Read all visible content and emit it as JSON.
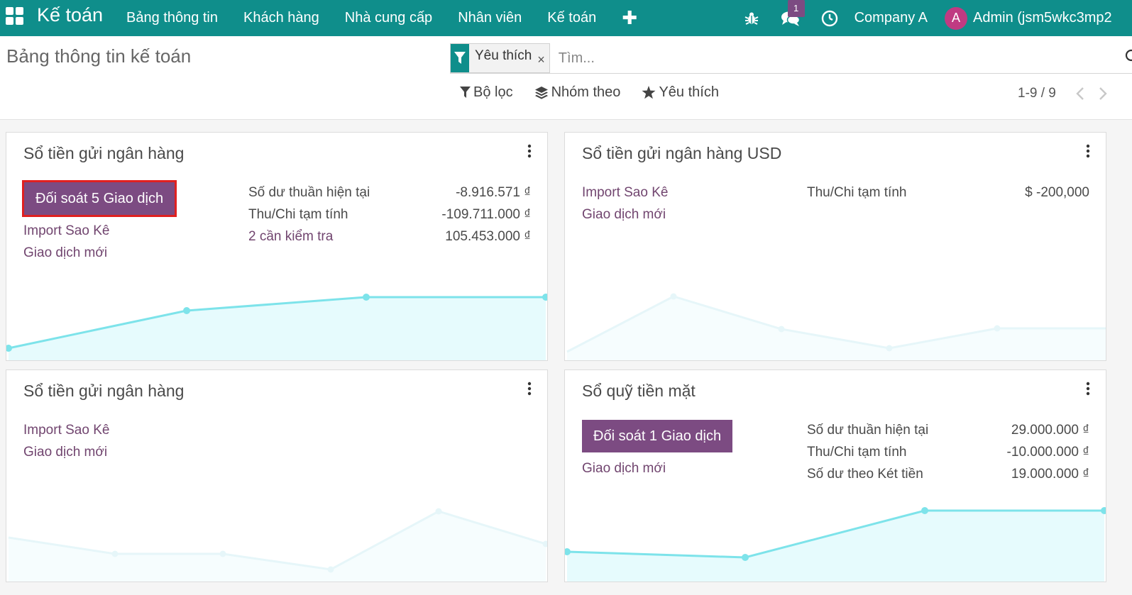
{
  "navbar": {
    "brand": "Kế toán",
    "menu": [
      "Bảng thông tin",
      "Khách hàng",
      "Nhà cung cấp",
      "Nhân viên",
      "Kế toán"
    ],
    "plus": "✚",
    "messages_badge": "1",
    "company": "Company A",
    "avatar_letter": "A",
    "user": "Admin (jsm5wkc3mp2"
  },
  "control": {
    "title": "Bảng thông tin kế toán",
    "facet_label": "Yêu thích",
    "facet_close": "×",
    "search_placeholder": "Tìm...",
    "filter_label": "Bộ lọc",
    "group_label": "Nhóm theo",
    "favorite_label": "Yêu thích",
    "pager": "1-9 / 9"
  },
  "cards": [
    {
      "title": "Sổ tiền gửi ngân hàng",
      "reconcile": "Đối soát 5 Giao dịch",
      "links": [
        "Import Sao Kê",
        "Giao dịch mới"
      ],
      "stats": [
        {
          "label": "Số dư thuần hiện tại",
          "value": "-8.916.571 ₫"
        },
        {
          "label": "Thu/Chi tạm tính",
          "value": "-109.711.000 ₫"
        },
        {
          "label": "2 cần kiểm tra",
          "value": "105.453.000 ₫"
        }
      ]
    },
    {
      "title": "Sổ tiền gửi ngân hàng USD",
      "links": [
        "Import Sao Kê",
        "Giao dịch mới"
      ],
      "stats": [
        {
          "label": "Thu/Chi tạm tính",
          "value": "$ -200,000"
        }
      ]
    },
    {
      "title": "Sổ tiền gửi ngân hàng",
      "links": [
        "Import Sao Kê",
        "Giao dịch mới"
      ]
    },
    {
      "title": "Sổ quỹ tiền mặt",
      "reconcile": "Đối soát 1 Giao dịch",
      "links": [
        "Giao dịch mới"
      ],
      "stats": [
        {
          "label": "Số dư thuần hiện tại",
          "value": "29.000.000 ₫"
        },
        {
          "label": "Thu/Chi tạm tính",
          "value": "-10.000.000 ₫"
        },
        {
          "label": "Số dư theo Két tiền",
          "value": "19.000.000 ₫"
        }
      ]
    }
  ],
  "colors": {
    "navbar": "#0f8e8b",
    "primary_button": "#7c4b82",
    "link": "#71456f",
    "chart_line": "#7de3ea",
    "chart_fill": "#e6fbfd",
    "chart_sample_line": "#e6f6f9",
    "chart_sample_fill": "#f6fdfe"
  }
}
